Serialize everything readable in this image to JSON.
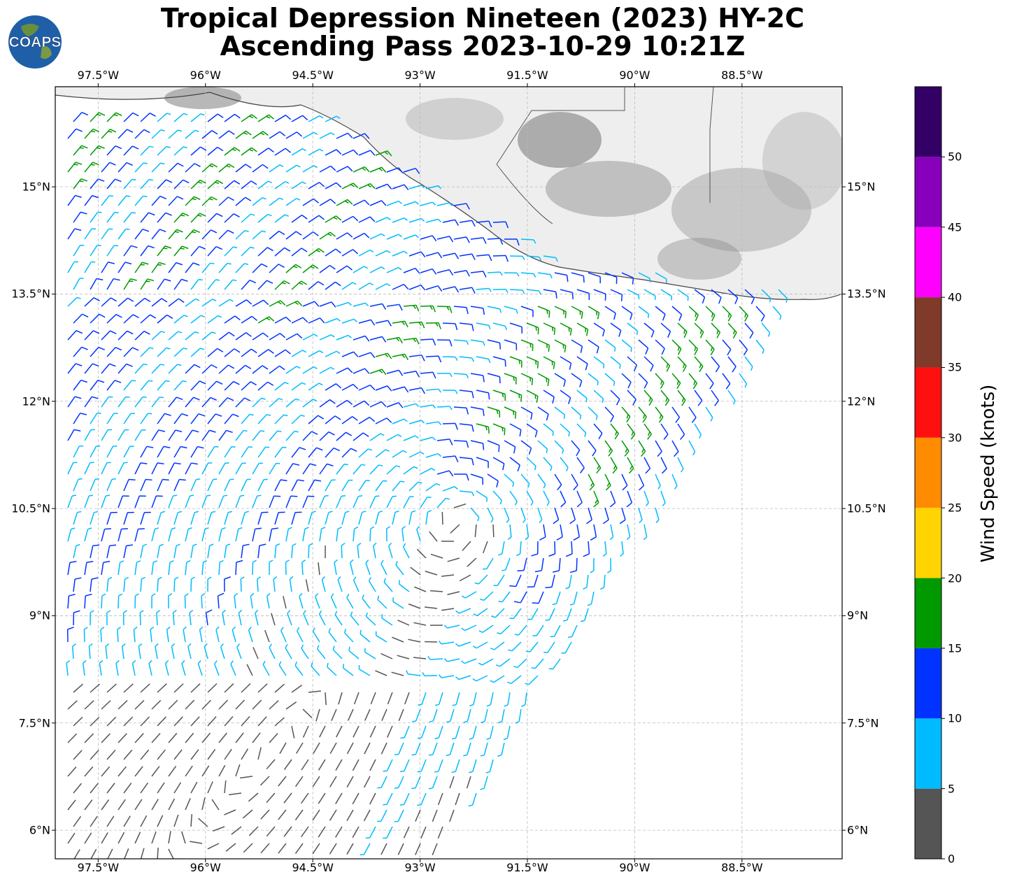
{
  "title": {
    "line1": "Tropical Depression Nineteen (2023) HY-2C",
    "line2": "Ascending Pass 2023-10-29 10:21Z"
  },
  "logo": {
    "text": "COAPS",
    "icon": "globe-logo-icon"
  },
  "map": {
    "lon_range": [
      -98.1,
      -87.1
    ],
    "lat_range": [
      5.6,
      16.4
    ],
    "lon_ticks": [
      -97.5,
      -96,
      -94.5,
      -93,
      -91.5,
      -90,
      -88.5
    ],
    "lon_tick_labels": [
      "97.5°W",
      "96°W",
      "94.5°W",
      "93°W",
      "91.5°W",
      "90°W",
      "88.5°W"
    ],
    "lat_ticks": [
      6,
      7.5,
      9,
      10.5,
      12,
      13.5,
      15
    ],
    "lat_tick_labels": [
      "6°N",
      "7.5°N",
      "9°N",
      "10.5°N",
      "12°N",
      "13.5°N",
      "15°N"
    ],
    "gridlines": true,
    "land": "grayscale terrain relief with coastline and borders",
    "storm_center": {
      "lon": -92.4,
      "lat": 10.5
    }
  },
  "colorbar": {
    "label": "Wind Speed (knots)",
    "tick_labels": [
      "0",
      "5",
      "10",
      "15",
      "20",
      "25",
      "30",
      "35",
      "40",
      "45",
      "50"
    ],
    "max": 55,
    "bins": [
      {
        "from": 0,
        "to": 5,
        "color": "#555555"
      },
      {
        "from": 5,
        "to": 10,
        "color": "#00bbff"
      },
      {
        "from": 10,
        "to": 15,
        "color": "#0033ff"
      },
      {
        "from": 15,
        "to": 20,
        "color": "#009900"
      },
      {
        "from": 20,
        "to": 25,
        "color": "#ffd400"
      },
      {
        "from": 25,
        "to": 30,
        "color": "#ff8c00"
      },
      {
        "from": 30,
        "to": 35,
        "color": "#ff1010"
      },
      {
        "from": 35,
        "to": 40,
        "color": "#803a2a"
      },
      {
        "from": 40,
        "to": 45,
        "color": "#ff00ff"
      },
      {
        "from": 45,
        "to": 50,
        "color": "#8800bb"
      },
      {
        "from": 50,
        "to": 55,
        "color": "#330066"
      }
    ]
  }
}
